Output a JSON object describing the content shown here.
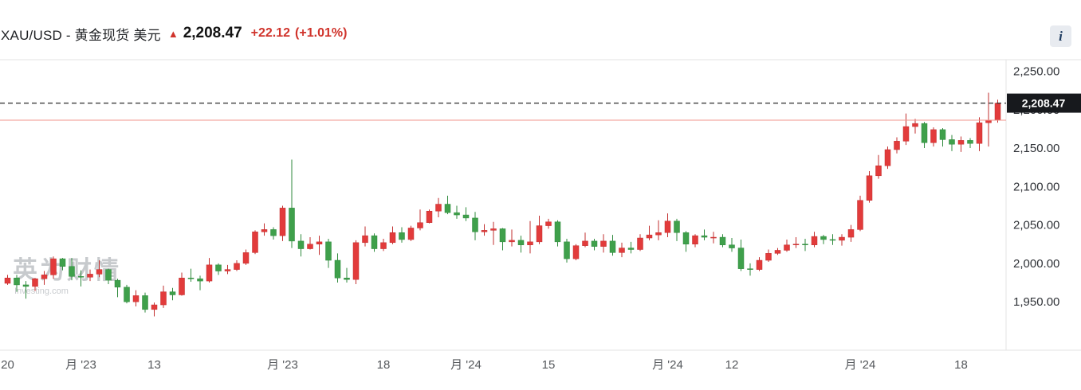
{
  "header": {
    "symbol_title": "XAU/USD - 黄金现货 美元",
    "arrow": "▲",
    "price": "2,208.47",
    "change": "+22.12",
    "change_pct": "(+1.01%)",
    "info_icon": "i"
  },
  "watermark": {
    "cn": "英为财情",
    "en": "Investing.com"
  },
  "price_tag": {
    "label": "2,208.47"
  },
  "chart_data": {
    "type": "candlestick",
    "symbol": "XAU/USD",
    "title": "XAU/USD - 黄金现货 美元",
    "last_price": 2208.47,
    "change": 22.12,
    "change_percent": 1.01,
    "prev_close": 2186.35,
    "y_range": [
      1887,
      2265
    ],
    "y_ticks": [
      {
        "v": 2250,
        "label": "2,250.00"
      },
      {
        "v": 2200,
        "label": "2,200.00"
      },
      {
        "v": 2150,
        "label": "2,150.00"
      },
      {
        "v": 2100,
        "label": "2,100.00"
      },
      {
        "v": 2050,
        "label": "2,050.00"
      },
      {
        "v": 2000,
        "label": "2,000.00"
      },
      {
        "v": 1950,
        "label": "1,950.00"
      }
    ],
    "x_ticks": [
      {
        "i": 0,
        "label": "20"
      },
      {
        "i": 8,
        "label": "月 '23"
      },
      {
        "i": 16,
        "label": "13"
      },
      {
        "i": 30,
        "label": "月 '23"
      },
      {
        "i": 41,
        "label": "18"
      },
      {
        "i": 50,
        "label": "月 '24"
      },
      {
        "i": 59,
        "label": "15"
      },
      {
        "i": 72,
        "label": "月 '24"
      },
      {
        "i": 79,
        "label": "12"
      },
      {
        "i": 93,
        "label": "月 '24"
      },
      {
        "i": 104,
        "label": "18"
      }
    ],
    "colors": {
      "up_candle": "#e23b3b",
      "up_border": "#c22f2f",
      "down_candle": "#3fa04b",
      "down_border": "#2f8a3d",
      "last_price_line": "#3c3c3c",
      "prev_close_line": "#f2948c",
      "axis_line": "#e3e3e3",
      "y_label": "#2f3237",
      "x_label": "#55585c",
      "tag_bg": "#17191d",
      "tag_text": "#ffffff",
      "accent_red": "#d0342c"
    },
    "candles": [
      [
        1974,
        1985,
        1972,
        1981
      ],
      [
        1981,
        1985,
        1963,
        1972
      ],
      [
        1972,
        1977,
        1954,
        1970
      ],
      [
        1970,
        1981,
        1964,
        1980
      ],
      [
        1980,
        1990,
        1972,
        1985
      ],
      [
        1985,
        2009,
        1980,
        2006
      ],
      [
        2006,
        2007,
        1991,
        1996
      ],
      [
        1996,
        2007,
        1978,
        1983
      ],
      [
        1983,
        1991,
        1970,
        1982
      ],
      [
        1982,
        1992,
        1977,
        1986
      ],
      [
        1986,
        2004,
        1982,
        1992
      ],
      [
        1992,
        1993,
        1973,
        1978
      ],
      [
        1978,
        1980,
        1956,
        1969
      ],
      [
        1969,
        1972,
        1948,
        1950
      ],
      [
        1950,
        1965,
        1944,
        1958
      ],
      [
        1958,
        1962,
        1936,
        1940
      ],
      [
        1940,
        1949,
        1931,
        1946
      ],
      [
        1946,
        1971,
        1942,
        1963
      ],
      [
        1963,
        1968,
        1952,
        1959
      ],
      [
        1959,
        1988,
        1958,
        1981
      ],
      [
        1981,
        1993,
        1976,
        1980
      ],
      [
        1980,
        1984,
        1965,
        1977
      ],
      [
        1977,
        2007,
        1975,
        1998
      ],
      [
        1998,
        2000,
        1985,
        1990
      ],
      [
        1990,
        1998,
        1986,
        1992
      ],
      [
        1992,
        2004,
        1990,
        2000
      ],
      [
        2000,
        2018,
        1998,
        2014
      ],
      [
        2014,
        2043,
        2012,
        2041
      ],
      [
        2041,
        2052,
        2036,
        2044
      ],
      [
        2044,
        2047,
        2031,
        2036
      ],
      [
        2036,
        2075,
        2029,
        2072
      ],
      [
        2072,
        2135,
        2020,
        2029
      ],
      [
        2029,
        2038,
        2009,
        2019
      ],
      [
        2019,
        2034,
        2018,
        2025
      ],
      [
        2025,
        2036,
        2011,
        2028
      ],
      [
        2028,
        2032,
        1994,
        2004
      ],
      [
        2004,
        2013,
        1975,
        1981
      ],
      [
        1981,
        1994,
        1975,
        1979
      ],
      [
        1979,
        2030,
        1973,
        2027
      ],
      [
        2027,
        2048,
        2022,
        2036
      ],
      [
        2036,
        2039,
        2015,
        2019
      ],
      [
        2019,
        2032,
        2016,
        2027
      ],
      [
        2027,
        2048,
        2025,
        2040
      ],
      [
        2040,
        2047,
        2027,
        2031
      ],
      [
        2031,
        2049,
        2029,
        2046
      ],
      [
        2046,
        2070,
        2043,
        2053
      ],
      [
        2053,
        2070,
        2052,
        2068
      ],
      [
        2068,
        2085,
        2060,
        2077
      ],
      [
        2077,
        2088,
        2064,
        2066
      ],
      [
        2066,
        2075,
        2058,
        2063
      ],
      [
        2063,
        2073,
        2055,
        2059
      ],
      [
        2059,
        2067,
        2030,
        2041
      ],
      [
        2041,
        2051,
        2036,
        2043
      ],
      [
        2043,
        2054,
        2024,
        2045
      ],
      [
        2045,
        2046,
        2017,
        2028
      ],
      [
        2028,
        2044,
        2022,
        2030
      ],
      [
        2030,
        2036,
        2014,
        2024
      ],
      [
        2024,
        2055,
        2013,
        2028
      ],
      [
        2028,
        2062,
        2025,
        2049
      ],
      [
        2049,
        2058,
        2045,
        2054
      ],
      [
        2054,
        2056,
        2022,
        2028
      ],
      [
        2028,
        2032,
        2001,
        2006
      ],
      [
        2006,
        2025,
        2004,
        2023
      ],
      [
        2023,
        2040,
        2021,
        2029
      ],
      [
        2029,
        2032,
        2017,
        2022
      ],
      [
        2022,
        2038,
        2014,
        2029
      ],
      [
        2029,
        2037,
        2010,
        2014
      ],
      [
        2014,
        2027,
        2008,
        2020
      ],
      [
        2020,
        2028,
        2013,
        2018
      ],
      [
        2018,
        2038,
        2016,
        2033
      ],
      [
        2033,
        2049,
        2030,
        2037
      ],
      [
        2037,
        2056,
        2030,
        2040
      ],
      [
        2040,
        2065,
        2034,
        2055
      ],
      [
        2055,
        2058,
        2029,
        2040
      ],
      [
        2040,
        2042,
        2015,
        2025
      ],
      [
        2025,
        2038,
        2021,
        2036
      ],
      [
        2036,
        2044,
        2030,
        2034
      ],
      [
        2034,
        2041,
        2026,
        2034
      ],
      [
        2034,
        2038,
        2021,
        2024
      ],
      [
        2024,
        2033,
        2015,
        2020
      ],
      [
        2020,
        2031,
        1990,
        1993
      ],
      [
        1993,
        2000,
        1984,
        1992
      ],
      [
        1992,
        2008,
        1990,
        2004
      ],
      [
        2004,
        2018,
        2002,
        2013
      ],
      [
        2013,
        2020,
        2011,
        2017
      ],
      [
        2017,
        2031,
        2015,
        2024
      ],
      [
        2024,
        2034,
        2020,
        2025
      ],
      [
        2025,
        2032,
        2016,
        2024
      ],
      [
        2024,
        2041,
        2021,
        2035
      ],
      [
        2035,
        2037,
        2025,
        2031
      ],
      [
        2031,
        2038,
        2024,
        2030
      ],
      [
        2030,
        2038,
        2023,
        2034
      ],
      [
        2034,
        2050,
        2028,
        2044
      ],
      [
        2044,
        2088,
        2042,
        2082
      ],
      [
        2082,
        2120,
        2079,
        2114
      ],
      [
        2114,
        2141,
        2110,
        2127
      ],
      [
        2127,
        2152,
        2123,
        2148
      ],
      [
        2148,
        2164,
        2143,
        2159
      ],
      [
        2159,
        2195,
        2154,
        2178
      ],
      [
        2178,
        2188,
        2169,
        2182
      ],
      [
        2182,
        2184,
        2150,
        2157
      ],
      [
        2157,
        2177,
        2152,
        2174
      ],
      [
        2174,
        2176,
        2152,
        2161
      ],
      [
        2161,
        2167,
        2146,
        2155
      ],
      [
        2155,
        2165,
        2145,
        2160
      ],
      [
        2160,
        2163,
        2150,
        2156
      ],
      [
        2156,
        2190,
        2146,
        2183
      ],
      [
        2183,
        2222,
        2152,
        2186.35
      ],
      [
        2187,
        2213,
        2183,
        2208.47
      ]
    ]
  }
}
